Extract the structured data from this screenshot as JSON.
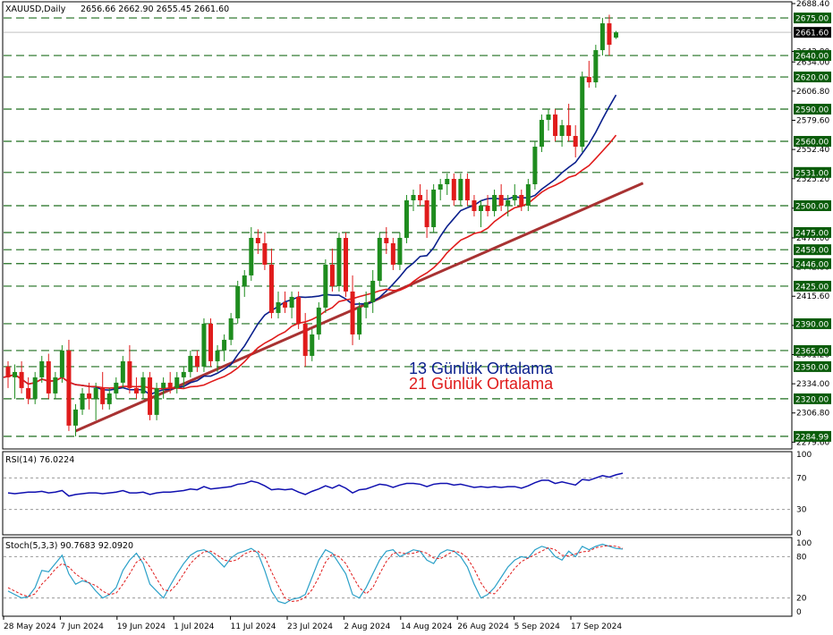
{
  "header": {
    "symbol_line": "XAUUSD,Daily",
    "ohlc_line": "2656.66 2662.90 2655.45 2661.60"
  },
  "colors": {
    "bull": "#1e8c1e",
    "bear": "#e01b1b",
    "ma13": "#0a1f8c",
    "ma21": "#e01b1b",
    "trend": "#a83232",
    "rsi": "#1010b0",
    "stoch_main": "#2aa0c8",
    "stoch_signal": "#e01b1b",
    "level_line": "#1e6e1e",
    "label_bg": "#0a5c0a"
  },
  "chart_data": [
    {
      "type": "candlestick",
      "title": "XAUUSD,Daily",
      "ylim": [
        2274.9,
        2688.4
      ],
      "y_ticks": [
        "2688.40",
        "2643.80",
        "2634.00",
        "2606.80",
        "2579.60",
        "2552.40",
        "2525.20",
        "2497.70",
        "2470.00",
        "2442.80",
        "2415.60",
        "2388.40",
        "2361.20",
        "2334.00",
        "2306.80",
        "2279.60"
      ],
      "x_labels": [
        "28 May 2024",
        "7 Jun 2024",
        "19 Jun 2024",
        "1 Jul 2024",
        "11 Jul 2024",
        "23 Jul 2024",
        "2 Aug 2024",
        "14 Aug 2024",
        "26 Aug 2024",
        "5 Sep 2024",
        "17 Sep 2024"
      ],
      "levels": [
        {
          "label": "2675.00",
          "value": 2675.0
        },
        {
          "label": "2640.00",
          "value": 2640.0
        },
        {
          "label": "2620.00",
          "value": 2620.0
        },
        {
          "label": "2590.00",
          "value": 2590.0
        },
        {
          "label": "2560.00",
          "value": 2560.0
        },
        {
          "label": "2531.00",
          "value": 2531.0
        },
        {
          "label": "2500.00",
          "value": 2500.0
        },
        {
          "label": "2475.00",
          "value": 2475.0
        },
        {
          "label": "2459.00",
          "value": 2459.0
        },
        {
          "label": "2446.00",
          "value": 2446.0
        },
        {
          "label": "2425.00",
          "value": 2425.0
        },
        {
          "label": "2390.00",
          "value": 2390.0
        },
        {
          "label": "2365.00",
          "value": 2365.0
        },
        {
          "label": "2350.00",
          "value": 2350.0
        },
        {
          "label": "2320.00",
          "value": 2320.0
        },
        {
          "label": "2284.99",
          "value": 2284.99
        }
      ],
      "current_price": {
        "label": "2661.60",
        "value": 2661.6
      },
      "ohlc": [
        [
          2350,
          2355,
          2330,
          2340
        ],
        [
          2340,
          2352,
          2320,
          2345
        ],
        [
          2345,
          2355,
          2325,
          2330
        ],
        [
          2330,
          2340,
          2315,
          2320
        ],
        [
          2320,
          2345,
          2315,
          2340
        ],
        [
          2340,
          2360,
          2335,
          2355
        ],
        [
          2355,
          2362,
          2320,
          2325
        ],
        [
          2325,
          2345,
          2320,
          2340
        ],
        [
          2340,
          2370,
          2335,
          2365
        ],
        [
          2365,
          2375,
          2290,
          2295
        ],
        [
          2295,
          2315,
          2285,
          2310
        ],
        [
          2310,
          2330,
          2305,
          2325
        ],
        [
          2325,
          2335,
          2310,
          2320
        ],
        [
          2320,
          2335,
          2300,
          2330
        ],
        [
          2330,
          2345,
          2310,
          2315
        ],
        [
          2315,
          2330,
          2310,
          2325
        ],
        [
          2325,
          2340,
          2320,
          2335
        ],
        [
          2335,
          2360,
          2330,
          2355
        ],
        [
          2355,
          2370,
          2325,
          2330
        ],
        [
          2330,
          2340,
          2320,
          2325
        ],
        [
          2325,
          2345,
          2320,
          2340
        ],
        [
          2340,
          2345,
          2300,
          2305
        ],
        [
          2305,
          2335,
          2300,
          2330
        ],
        [
          2330,
          2340,
          2320,
          2335
        ],
        [
          2335,
          2345,
          2325,
          2330
        ],
        [
          2330,
          2345,
          2325,
          2340
        ],
        [
          2340,
          2350,
          2330,
          2345
        ],
        [
          2345,
          2365,
          2340,
          2360
        ],
        [
          2360,
          2365,
          2345,
          2350
        ],
        [
          2350,
          2395,
          2345,
          2390
        ],
        [
          2390,
          2395,
          2350,
          2355
        ],
        [
          2355,
          2370,
          2345,
          2365
        ],
        [
          2365,
          2380,
          2355,
          2375
        ],
        [
          2375,
          2400,
          2370,
          2395
        ],
        [
          2395,
          2430,
          2390,
          2425
        ],
        [
          2425,
          2440,
          2415,
          2435
        ],
        [
          2435,
          2480,
          2430,
          2470
        ],
        [
          2470,
          2478,
          2455,
          2465
        ],
        [
          2465,
          2475,
          2440,
          2445
        ],
        [
          2445,
          2460,
          2395,
          2400
        ],
        [
          2400,
          2420,
          2395,
          2410
        ],
        [
          2410,
          2420,
          2400,
          2405
        ],
        [
          2405,
          2420,
          2395,
          2415
        ],
        [
          2415,
          2420,
          2385,
          2390
        ],
        [
          2390,
          2400,
          2350,
          2360
        ],
        [
          2360,
          2385,
          2355,
          2380
        ],
        [
          2380,
          2410,
          2375,
          2405
        ],
        [
          2405,
          2450,
          2400,
          2445
        ],
        [
          2445,
          2460,
          2420,
          2425
        ],
        [
          2425,
          2475,
          2420,
          2470
        ],
        [
          2470,
          2475,
          2415,
          2420
        ],
        [
          2420,
          2435,
          2370,
          2380
        ],
        [
          2380,
          2410,
          2375,
          2405
        ],
        [
          2405,
          2420,
          2395,
          2410
        ],
        [
          2410,
          2440,
          2400,
          2430
        ],
        [
          2430,
          2475,
          2425,
          2470
        ],
        [
          2470,
          2480,
          2455,
          2465
        ],
        [
          2465,
          2470,
          2440,
          2445
        ],
        [
          2445,
          2475,
          2440,
          2470
        ],
        [
          2470,
          2510,
          2465,
          2505
        ],
        [
          2505,
          2515,
          2495,
          2510
        ],
        [
          2510,
          2520,
          2500,
          2505
        ],
        [
          2505,
          2515,
          2470,
          2480
        ],
        [
          2480,
          2520,
          2475,
          2515
        ],
        [
          2515,
          2525,
          2505,
          2520
        ],
        [
          2520,
          2530,
          2510,
          2525
        ],
        [
          2525,
          2530,
          2500,
          2505
        ],
        [
          2505,
          2530,
          2500,
          2525
        ],
        [
          2525,
          2530,
          2500,
          2505
        ],
        [
          2505,
          2510,
          2490,
          2495
        ],
        [
          2495,
          2505,
          2480,
          2500
        ],
        [
          2500,
          2510,
          2490,
          2495
        ],
        [
          2495,
          2515,
          2490,
          2510
        ],
        [
          2510,
          2520,
          2495,
          2500
        ],
        [
          2500,
          2510,
          2490,
          2505
        ],
        [
          2505,
          2520,
          2500,
          2510
        ],
        [
          2510,
          2515,
          2495,
          2500
        ],
        [
          2500,
          2525,
          2495,
          2520
        ],
        [
          2520,
          2560,
          2515,
          2555
        ],
        [
          2555,
          2585,
          2550,
          2580
        ],
        [
          2580,
          2590,
          2570,
          2585
        ],
        [
          2585,
          2590,
          2560,
          2565
        ],
        [
          2565,
          2580,
          2555,
          2575
        ],
        [
          2575,
          2595,
          2560,
          2565
        ],
        [
          2565,
          2575,
          2545,
          2555
        ],
        [
          2555,
          2625,
          2550,
          2620
        ],
        [
          2620,
          2635,
          2610,
          2615
        ],
        [
          2615,
          2650,
          2610,
          2645
        ],
        [
          2645,
          2675,
          2640,
          2670
        ],
        [
          2670,
          2678,
          2640,
          2650
        ],
        [
          2656.66,
          2662.9,
          2655.45,
          2661.6
        ]
      ],
      "series": [
        {
          "name": "13 Günlük Ortalama",
          "period": 13
        },
        {
          "name": "21 Günlük Ortalama",
          "period": 21
        }
      ],
      "trendline": {
        "from_index": 10,
        "from_value": 2290,
        "to_index": 94,
        "to_value": 2521
      }
    },
    {
      "type": "line",
      "title": "RSI(14) 76.0224",
      "ylim": [
        0,
        100
      ],
      "y_ticks": [
        "100",
        "70",
        "30",
        "0"
      ],
      "levels": [
        70,
        30
      ],
      "values": [
        51,
        50,
        51,
        52,
        52,
        53,
        51,
        52,
        54,
        47,
        49,
        50,
        51,
        51,
        50,
        51,
        52,
        54,
        51,
        51,
        52,
        49,
        51,
        52,
        52,
        53,
        54,
        56,
        55,
        59,
        56,
        57,
        58,
        59,
        62,
        63,
        66,
        64,
        60,
        55,
        56,
        55,
        56,
        52,
        49,
        53,
        56,
        60,
        57,
        61,
        57,
        51,
        55,
        56,
        59,
        62,
        61,
        58,
        61,
        63,
        63,
        62,
        59,
        62,
        63,
        63,
        61,
        62,
        60,
        58,
        59,
        58,
        59,
        58,
        59,
        59,
        57,
        60,
        64,
        67,
        67,
        63,
        65,
        63,
        61,
        68,
        67,
        70,
        73,
        71,
        74,
        76
      ]
    },
    {
      "type": "line",
      "title": "Stoch(5,3,3) 90.7683 92.0920",
      "ylim": [
        0,
        100
      ],
      "y_ticks": [
        "100",
        "80",
        "20",
        "0"
      ],
      "levels": [
        80,
        20
      ],
      "series": [
        {
          "name": "main",
          "values": [
            30,
            25,
            20,
            22,
            35,
            60,
            58,
            70,
            82,
            55,
            40,
            45,
            42,
            30,
            20,
            25,
            35,
            60,
            75,
            85,
            70,
            40,
            30,
            20,
            38,
            55,
            70,
            82,
            88,
            90,
            85,
            75,
            65,
            78,
            85,
            88,
            92,
            85,
            60,
            30,
            15,
            12,
            18,
            20,
            25,
            50,
            75,
            90,
            85,
            70,
            55,
            25,
            20,
            35,
            55,
            75,
            88,
            90,
            80,
            85,
            90,
            88,
            75,
            70,
            85,
            90,
            88,
            80,
            65,
            40,
            20,
            25,
            35,
            50,
            65,
            75,
            80,
            78,
            90,
            95,
            92,
            80,
            75,
            88,
            80,
            95,
            90,
            95,
            98,
            95,
            92,
            91
          ]
        },
        {
          "name": "signal",
          "values": [
            35,
            30,
            25,
            22,
            26,
            40,
            50,
            62,
            70,
            65,
            55,
            48,
            42,
            38,
            30,
            25,
            27,
            40,
            55,
            72,
            78,
            65,
            48,
            32,
            30,
            40,
            55,
            70,
            80,
            87,
            88,
            82,
            75,
            73,
            76,
            84,
            88,
            88,
            80,
            58,
            38,
            20,
            15,
            16,
            21,
            32,
            50,
            72,
            84,
            80,
            70,
            52,
            35,
            26,
            35,
            55,
            73,
            85,
            86,
            84,
            85,
            88,
            85,
            78,
            77,
            83,
            88,
            86,
            78,
            62,
            42,
            28,
            26,
            37,
            50,
            63,
            73,
            78,
            83,
            88,
            93,
            90,
            82,
            81,
            84,
            87,
            88,
            93,
            95,
            96,
            95,
            92
          ]
        }
      ]
    }
  ],
  "annotations": {
    "ma13_label": "13 Günlük Ortalama",
    "ma21_label": "21 Günlük Ortalama"
  }
}
